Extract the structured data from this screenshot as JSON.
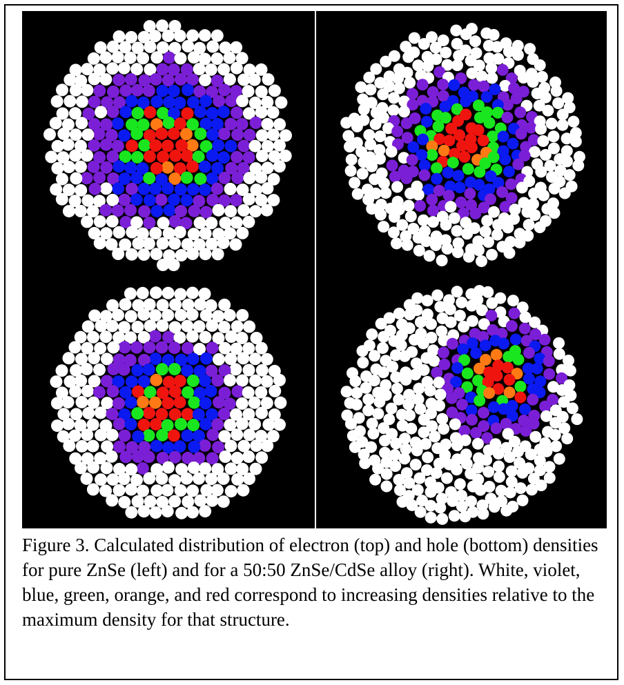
{
  "figure": {
    "caption": "Figure 3.  Calculated distribution of electron (top) and hole (bottom) densities for pure ZnSe (left) and for a 50:50 ZnSe/CdSe alloy (right).  White, violet, blue, green, orange, and red correspond to increasing densities relative to the maximum density for that structure."
  },
  "colors": {
    "background": "#000000",
    "white": "#ffffff",
    "violet": "#7b1fd6",
    "blue": "#0a1af0",
    "green": "#19e61e",
    "orange": "#ff7a14",
    "red": "#f0140f"
  }
}
